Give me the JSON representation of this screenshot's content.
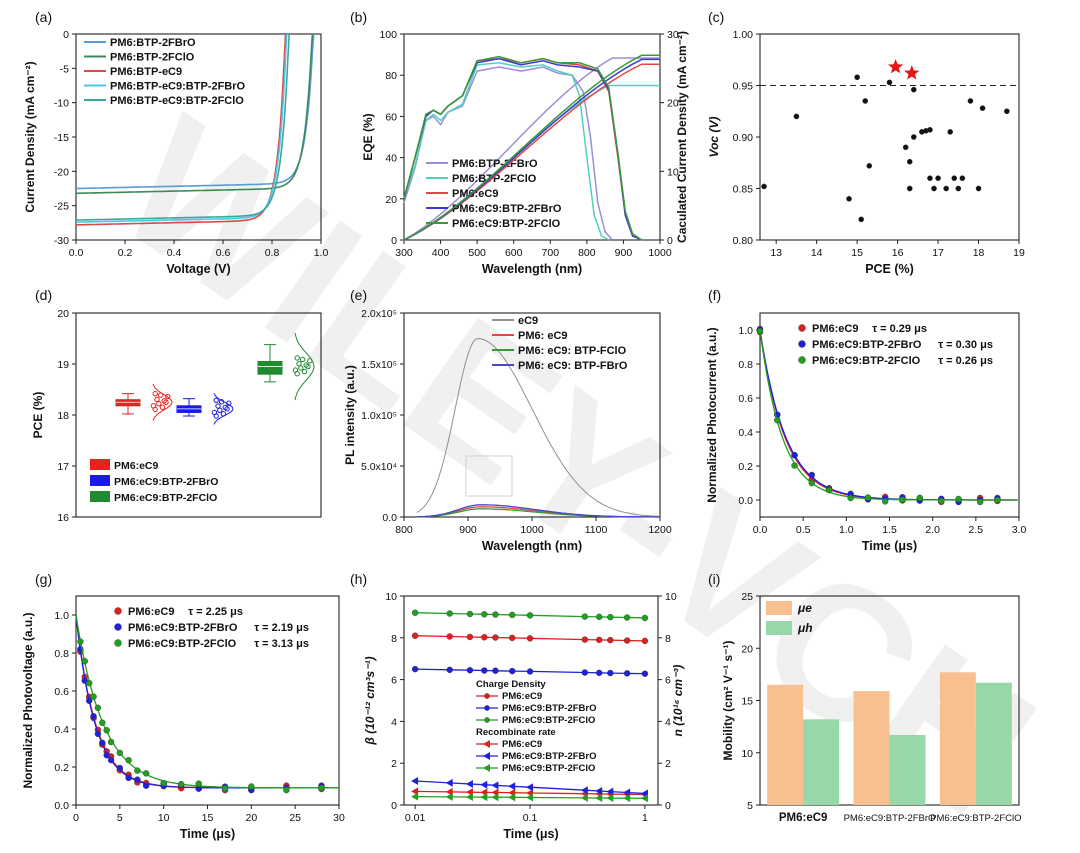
{
  "watermark": "WILEY-VCH",
  "chart_data": [
    {
      "panel": "(a)",
      "type": "line",
      "xlabel": "Voltage (V)",
      "ylabel": "Current Density (mA cm⁻²)",
      "xlim": [
        0.0,
        1.0
      ],
      "ylim": [
        -30,
        0
      ],
      "xticks": [
        "0.0",
        "0.2",
        "0.4",
        "0.6",
        "0.8",
        "1.0"
      ],
      "yticks": [
        "-30",
        "-25",
        "-20",
        "-15",
        "-10",
        "-5",
        "0"
      ],
      "legend": "top-left",
      "series": [
        {
          "name": "PM6:BTP-2FBrO",
          "color": "#5b9bd5",
          "jsc": -22.5,
          "voc": 0.97
        },
        {
          "name": "PM6:BTP-2FClO",
          "color": "#3a8a5a",
          "jsc": -23.2,
          "voc": 0.965
        },
        {
          "name": "PM6:BTP-eC9",
          "color": "#e04848",
          "jsc": -27.8,
          "voc": 0.855
        },
        {
          "name": "PM6:BTP-eC9:BTP-2FBrO",
          "color": "#4fc3e8",
          "jsc": -27.4,
          "voc": 0.86
        },
        {
          "name": "PM6:BTP-eC9:BTP-2FClO",
          "color": "#3aa89a",
          "jsc": -27.1,
          "voc": 0.87
        }
      ]
    },
    {
      "panel": "(b)",
      "type": "line",
      "xlabel": "Wavelength (nm)",
      "ylabel": "EQE (%)",
      "y2label": "Caculated Current Density (mA cm⁻²)",
      "xlim": [
        300,
        1000
      ],
      "ylim": [
        0,
        100
      ],
      "y2lim": [
        0,
        30
      ],
      "xticks": [
        "300",
        "400",
        "500",
        "600",
        "700",
        "800",
        "900",
        "1000"
      ],
      "yticks": [
        "0",
        "20",
        "40",
        "60",
        "80",
        "100"
      ],
      "y2ticks": [
        "0",
        "10",
        "20",
        "30"
      ],
      "legend": "bottom-center",
      "series": [
        {
          "name": "PM6:BTP-2FBrO",
          "color": "#9a8fd8"
        },
        {
          "name": "PM6:BTP-2FClO",
          "color": "#4fd1c0"
        },
        {
          "name": "PM6:eC9",
          "color": "#e04848"
        },
        {
          "name": "PM6:eC9:BTP-2FBrO",
          "color": "#3b3bd0"
        },
        {
          "name": "PM6:eC9:BTP-2FClO",
          "color": "#3a9a3a"
        }
      ]
    },
    {
      "panel": "(c)",
      "type": "scatter",
      "xlabel": "PCE (%)",
      "ylabel": "Voc (V)",
      "xlim": [
        12.6,
        19
      ],
      "ylim": [
        0.8,
        1.0
      ],
      "xticks": [
        "13",
        "14",
        "15",
        "16",
        "17",
        "18",
        "19"
      ],
      "yticks": [
        "0.80",
        "0.85",
        "0.90",
        "0.95",
        "1.00"
      ],
      "reference_line_y": 0.95,
      "points": [
        [
          12.7,
          0.852
        ],
        [
          13.5,
          0.92
        ],
        [
          14.8,
          0.84
        ],
        [
          15.0,
          0.958
        ],
        [
          15.1,
          0.82
        ],
        [
          15.2,
          0.935
        ],
        [
          15.3,
          0.872
        ],
        [
          15.8,
          0.953
        ],
        [
          16.2,
          0.89
        ],
        [
          16.3,
          0.85
        ],
        [
          16.3,
          0.876
        ],
        [
          16.4,
          0.946
        ],
        [
          16.4,
          0.9
        ],
        [
          16.6,
          0.905
        ],
        [
          16.7,
          0.906
        ],
        [
          16.8,
          0.86
        ],
        [
          16.8,
          0.907
        ],
        [
          16.9,
          0.85
        ],
        [
          17.0,
          0.86
        ],
        [
          17.2,
          0.85
        ],
        [
          17.3,
          0.905
        ],
        [
          17.4,
          0.86
        ],
        [
          17.5,
          0.85
        ],
        [
          17.6,
          0.86
        ],
        [
          17.8,
          0.935
        ],
        [
          18.0,
          0.85
        ],
        [
          18.1,
          0.928
        ],
        [
          18.7,
          0.925
        ]
      ],
      "stars": [
        [
          15.95,
          0.968
        ],
        [
          16.35,
          0.962
        ]
      ]
    },
    {
      "panel": "(d)",
      "type": "box",
      "ylabel": "PCE (%)",
      "ylim": [
        16,
        20
      ],
      "yticks": [
        "16",
        "17",
        "18",
        "19",
        "20"
      ],
      "legend": "bottom-left",
      "series": [
        {
          "name": "PM6:eC9",
          "color": "#e82020",
          "q1": 18.18,
          "q3": 18.3,
          "median": 18.25,
          "min": 18.02,
          "max": 18.42
        },
        {
          "name": "PM6:eC9:BTP-2FBrO",
          "color": "#1a1ae8",
          "q1": 18.05,
          "q3": 18.18,
          "median": 18.12,
          "min": 17.98,
          "max": 18.32
        },
        {
          "name": "PM6:eC9:BTP-2FClO",
          "color": "#1f8a30",
          "q1": 18.8,
          "q3": 19.05,
          "median": 18.95,
          "min": 18.65,
          "max": 19.38
        }
      ]
    },
    {
      "panel": "(e)",
      "type": "line",
      "xlabel": "Wavelength (nm)",
      "ylabel": "PL intensity (a.u.)",
      "xlim": [
        800,
        1200
      ],
      "ylim": [
        0,
        200000
      ],
      "xticks": [
        "800",
        "900",
        "1000",
        "1100",
        "1200"
      ],
      "yticks": [
        "0.0",
        "5.0x10⁴",
        "1.0x10⁵",
        "1.5x10⁵",
        "2.0x10⁵"
      ],
      "legend": "top-right",
      "series": [
        {
          "name": "eC9",
          "color": "#909090",
          "peak_x": 915,
          "peak_y": 175000
        },
        {
          "name": "PM6: eC9",
          "color": "#e04848",
          "peak_x": 920,
          "peak_y": 10000
        },
        {
          "name": "PM6: eC9: BTP-FClO",
          "color": "#3a9a3a",
          "peak_x": 920,
          "peak_y": 8000
        },
        {
          "name": "PM6: eC9: BTP-FBrO",
          "color": "#4848c8",
          "peak_x": 920,
          "peak_y": 12000
        }
      ]
    },
    {
      "panel": "(f)",
      "type": "scatter",
      "xlabel": "Time (μs)",
      "ylabel": "Normalized Photocurrent (a.u.)",
      "xlim": [
        0.0,
        3.0
      ],
      "ylim": [
        -0.1,
        1.1
      ],
      "xticks": [
        "0.0",
        "0.5",
        "1.0",
        "1.5",
        "2.0",
        "2.5",
        "3.0"
      ],
      "yticks": [
        "0.0",
        "0.2",
        "0.4",
        "0.6",
        "0.8",
        "1.0"
      ],
      "legend": "top-right",
      "x": [
        0.0,
        0.2,
        0.4,
        0.6,
        0.8,
        1.05,
        1.25,
        1.45,
        1.65,
        1.85,
        2.1,
        2.3,
        2.55,
        2.75
      ],
      "series": [
        {
          "name": "PM6:eC9",
          "tau_label": "τ = 0.29 μs",
          "tau": 0.29,
          "color": "#e02020"
        },
        {
          "name": "PM6:eC9:BTP-2FBrO",
          "tau_label": "τ = 0.30 μs",
          "tau": 0.3,
          "color": "#2020e0"
        },
        {
          "name": "PM6:eC9:BTP-2FClO",
          "tau_label": "τ = 0.26 μs",
          "tau": 0.26,
          "color": "#20a020"
        }
      ]
    },
    {
      "panel": "(g)",
      "type": "scatter",
      "xlabel": "Time (μs)",
      "ylabel": "Normalized Photovoltage (a.u.)",
      "xlim": [
        0,
        30
      ],
      "ylim": [
        0.0,
        1.1
      ],
      "xticks": [
        "0",
        "5",
        "10",
        "15",
        "20",
        "25",
        "30"
      ],
      "yticks": [
        "0.0",
        "0.2",
        "0.4",
        "0.6",
        "0.8",
        "1.0"
      ],
      "legend": "top-right",
      "x": [
        0.5,
        1,
        1.5,
        2,
        2.5,
        3,
        3.5,
        4,
        5,
        6,
        7,
        8,
        10,
        12,
        14,
        17,
        20,
        24,
        28
      ],
      "series": [
        {
          "name": "PM6:eC9",
          "tau_label": "τ = 2.25 μs",
          "tau": 2.25,
          "color": "#e02020"
        },
        {
          "name": "PM6:eC9:BTP-2FBrO",
          "tau_label": "τ = 2.19 μs",
          "tau": 2.19,
          "color": "#2020e0"
        },
        {
          "name": "PM6:eC9:BTP-2FClO",
          "tau_label": "τ = 3.13 μs",
          "tau": 3.13,
          "color": "#20a020"
        }
      ]
    },
    {
      "panel": "(h)",
      "type": "line",
      "xlabel": "Time (μs)",
      "ylabel": "β (10⁻¹² cm³s⁻¹)",
      "y2label": "n (10¹⁶ cm⁻³)",
      "xscale": "log",
      "xlim": [
        0.008,
        1.3
      ],
      "ylim": [
        0,
        10
      ],
      "y2lim": [
        0,
        10
      ],
      "xticks": [
        "0.01",
        "0.1",
        "1"
      ],
      "yticks": [
        "0",
        "2",
        "4",
        "6",
        "8",
        "10"
      ],
      "y2ticks": [
        "0",
        "2",
        "4",
        "6",
        "8",
        "10"
      ],
      "legend": "center",
      "x": [
        0.01,
        0.02,
        0.03,
        0.04,
        0.05,
        0.07,
        0.1,
        0.3,
        0.4,
        0.5,
        0.7,
        1.0
      ],
      "legend_groups": [
        "Charge Density",
        "Recombinate rate"
      ],
      "series": [
        {
          "group": "Charge Density",
          "name": "PM6:eC9",
          "color": "#e02020",
          "start": 8.1,
          "end": 7.85
        },
        {
          "group": "Charge Density",
          "name": "PM6:eC9:BTP-2FBrO",
          "color": "#2020e0",
          "start": 6.5,
          "end": 6.28
        },
        {
          "group": "Charge Density",
          "name": "PM6:eC9:BTP-2FClO",
          "color": "#20a020",
          "start": 9.2,
          "end": 8.95
        },
        {
          "group": "Recombinate rate",
          "name": "PM6:eC9",
          "color": "#e02020",
          "start": 0.65,
          "end": 0.5
        },
        {
          "group": "Recombinate rate",
          "name": "PM6:eC9:BTP-2FBrO",
          "color": "#2020e0",
          "start": 1.15,
          "end": 0.55
        },
        {
          "group": "Recombinate rate",
          "name": "PM6:eC9:BTP-2FClO",
          "color": "#20a020",
          "start": 0.4,
          "end": 0.32
        }
      ]
    },
    {
      "panel": "(i)",
      "type": "bar",
      "ylabel": "Mobility (cm² V⁻¹ s⁻¹)",
      "ylim": [
        5,
        25
      ],
      "yticks": [
        "5",
        "10",
        "15",
        "20",
        "25"
      ],
      "categories": [
        "PM6:eC9",
        "PM6:eC9:BTP-2FBrO",
        "PM6:eC9:BTP-2FClO"
      ],
      "legend": "top-left",
      "series": [
        {
          "name": "μe",
          "color": "#f8c090",
          "values": [
            16.5,
            15.9,
            17.7
          ]
        },
        {
          "name": "μh",
          "color": "#98d8a8",
          "values": [
            13.2,
            11.7,
            16.7
          ]
        }
      ]
    }
  ]
}
